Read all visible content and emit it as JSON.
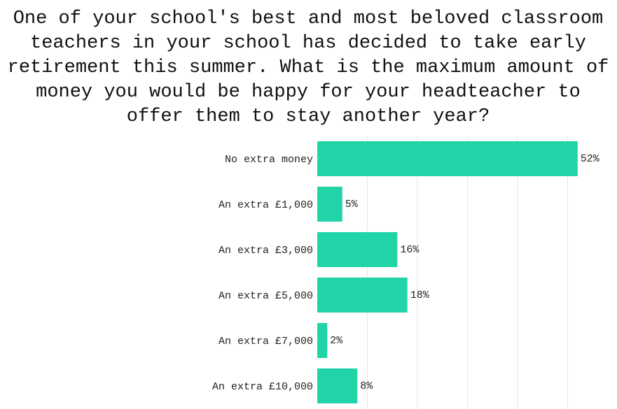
{
  "chart_data": {
    "type": "hbar",
    "title": [
      "One of your school's best and most beloved classroom",
      "teachers in your school has decided to take early",
      "retirement this summer. What is the maximum amount of",
      "money you would be happy for your headteacher to",
      "offer them to stay another year?"
    ],
    "categories": [
      "No extra money",
      "An extra £1,000",
      "An extra £3,000",
      "An extra £5,000",
      "An extra £7,000",
      "An extra £10,000"
    ],
    "values": [
      52,
      5,
      16,
      18,
      2,
      8
    ],
    "value_labels": [
      "52%",
      "5%",
      "16%",
      "18%",
      "2%",
      "8%"
    ],
    "color": "#21d4a7",
    "xlim": [
      0,
      60
    ],
    "gridlines": [
      10,
      20,
      30,
      40,
      50
    ],
    "grid": true
  }
}
